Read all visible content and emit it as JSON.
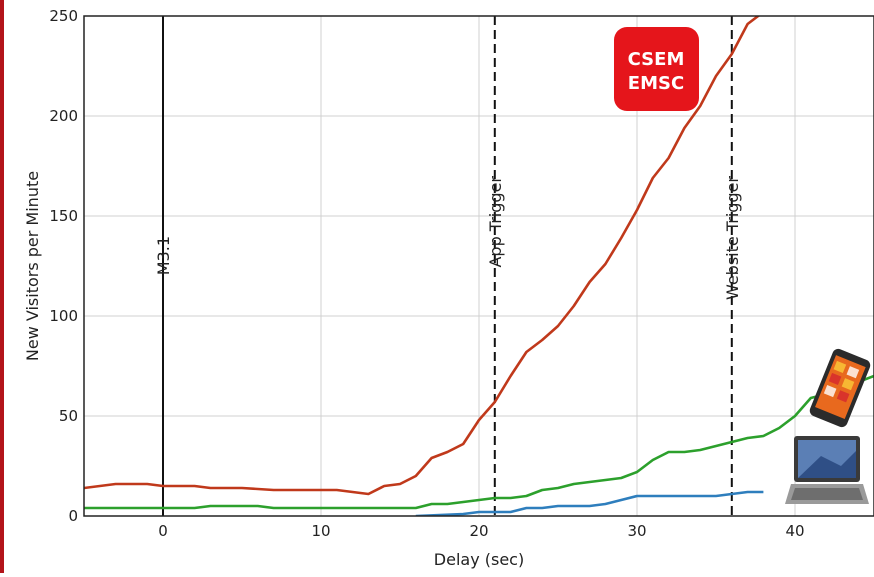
{
  "chart_data": {
    "type": "line",
    "title": "",
    "xlabel": "Delay (sec)",
    "ylabel": "New Visitors per Minute",
    "xlim": [
      -5,
      45
    ],
    "ylim": [
      0,
      250
    ],
    "xticks": [
      0,
      10,
      20,
      30,
      40
    ],
    "yticks": [
      0,
      50,
      100,
      150,
      200,
      250
    ],
    "grid": true,
    "legend": "none",
    "series": [
      {
        "color": "#c0391b",
        "x": [
          -5,
          -3,
          -1,
          0,
          1,
          2,
          3,
          5,
          7,
          9,
          10,
          11,
          12,
          13,
          14,
          15,
          16,
          17,
          18,
          19,
          20,
          21,
          22,
          23,
          24,
          25,
          26,
          27,
          28,
          29,
          30,
          31,
          32,
          33,
          34,
          35,
          36,
          37,
          38
        ],
        "y": [
          14,
          16,
          16,
          15,
          15,
          15,
          14,
          14,
          13,
          13,
          13,
          13,
          12,
          11,
          15,
          16,
          20,
          29,
          32,
          36,
          48,
          57,
          70,
          82,
          88,
          95,
          105,
          117,
          126,
          139,
          153,
          169,
          179,
          194,
          205,
          220,
          231,
          246,
          252
        ]
      },
      {
        "color": "#2ca02c",
        "x": [
          -5,
          0,
          2,
          3,
          6,
          7,
          10,
          14,
          16,
          17,
          18,
          19,
          20,
          21,
          22,
          23,
          24,
          25,
          26,
          27,
          28,
          29,
          30,
          31,
          32,
          33,
          34,
          35,
          36,
          37,
          38,
          39,
          40,
          41,
          42,
          43,
          44,
          45
        ],
        "y": [
          4,
          4,
          4,
          5,
          5,
          4,
          4,
          4,
          4,
          6,
          6,
          7,
          8,
          9,
          9,
          10,
          13,
          14,
          16,
          17,
          18,
          19,
          22,
          28,
          32,
          32,
          33,
          35,
          37,
          39,
          40,
          44,
          50,
          59,
          61,
          65,
          67,
          70
        ]
      },
      {
        "color": "#2e7ebd",
        "x": [
          16,
          19,
          20,
          21,
          22,
          23,
          24,
          25,
          26,
          27,
          28,
          29,
          30,
          31,
          32,
          33,
          34,
          35,
          36,
          37,
          38
        ],
        "y": [
          0,
          1,
          2,
          2,
          2,
          4,
          4,
          5,
          5,
          5,
          6,
          8,
          10,
          10,
          10,
          10,
          10,
          10,
          11,
          12,
          12
        ]
      }
    ],
    "vlines": [
      {
        "x": 0,
        "label": "M3.1",
        "style": "solid"
      },
      {
        "x": 21,
        "label": "App Trigger",
        "style": "dashed"
      },
      {
        "x": 36,
        "label": "Website Trigger",
        "style": "dashed"
      }
    ],
    "logo": {
      "line1": "CSEM",
      "line2": "EMSC",
      "color": "#e5151b"
    },
    "icons": [
      "smartphone-icon",
      "laptop-icon"
    ]
  }
}
